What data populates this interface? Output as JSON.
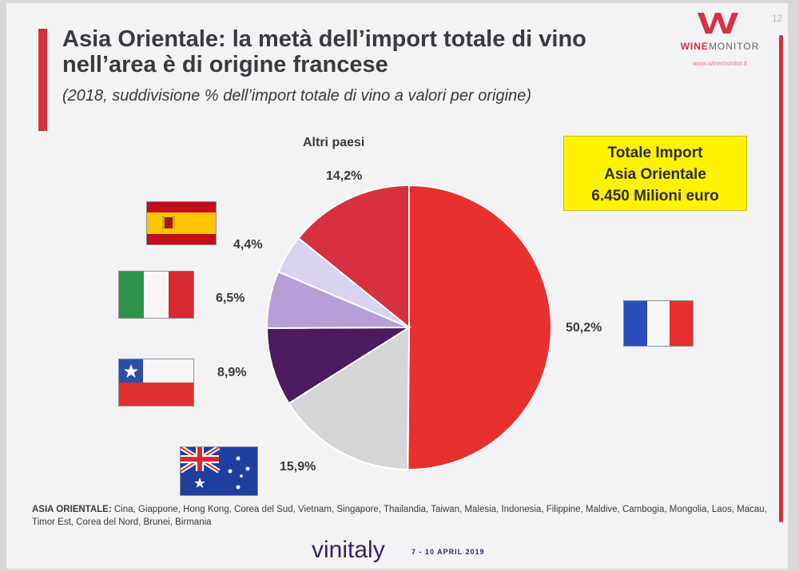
{
  "title": "Asia Orientale: la metà dell’import totale di vino nell’area è di origine francese",
  "subtitle": "(2018, suddivisione % dell’import totale di vino a valori per origine)",
  "page_number": "12",
  "logo": {
    "name_part1": "WINE",
    "name_part2": "MONITOR",
    "url": "www.winemonitor.it"
  },
  "total_box": {
    "line1": "Totale Import",
    "line2": "Asia Orientale",
    "line3": "6.450 Milioni euro"
  },
  "footnote": {
    "label": "ASIA ORIENTALE:",
    "text": " Cina, Giappone, Hong Kong, Corea del Sud, Vietnam, Singapore, Thailandia, Taiwan, Malesia, Indonesia, Filippine, Maldive, Cambogia, Mongolia, Laos, Macau, Timor Est, Corea del Nord, Brunei, Birmania"
  },
  "brand": {
    "name": "vinitaly",
    "dates": "7 - 10 APRIL 2019"
  },
  "chart_data": {
    "type": "pie",
    "title": "",
    "slices": [
      {
        "label": "Francia",
        "value": 50.2,
        "display": "50,2%",
        "color": "#e8302f",
        "flag": "france-flag"
      },
      {
        "label": "Australia",
        "value": 15.9,
        "display": "15,9%",
        "color": "#d5d5d8",
        "flag": "australia-flag"
      },
      {
        "label": "Cile",
        "value": 8.9,
        "display": "8,9%",
        "color": "#4c1a5e",
        "flag": "chile-flag"
      },
      {
        "label": "Italia",
        "value": 6.5,
        "display": "6,5%",
        "color": "#b69fd6",
        "flag": "italy-flag"
      },
      {
        "label": "Spagna",
        "value": 4.4,
        "display": "4,4%",
        "color": "#d9d2f0",
        "flag": "spain-flag"
      },
      {
        "label": "Altri paesi",
        "value": 14.2,
        "display": "14,2%",
        "color": "#d7303f",
        "flag": ""
      }
    ],
    "category_label_shown": "Altri paesi",
    "start_angle": "12 o'clock",
    "direction": "clockwise",
    "legend": "none"
  }
}
